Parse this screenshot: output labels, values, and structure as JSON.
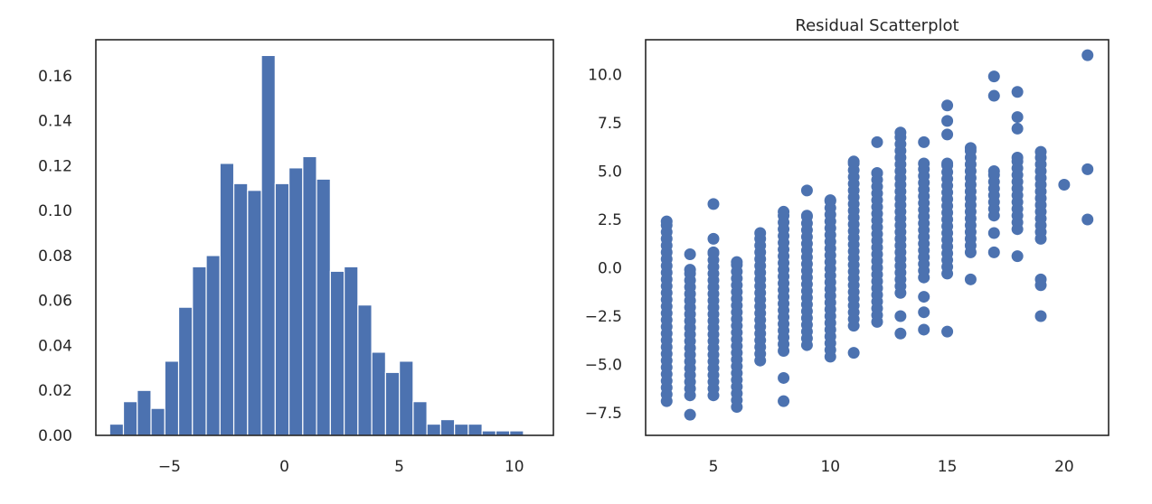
{
  "chart_data": [
    {
      "type": "bar",
      "title": "",
      "xlabel": "",
      "ylabel": "",
      "color": "#4c72b0",
      "xlim": [
        -8.2,
        11.7
      ],
      "ylim": [
        0,
        0.176
      ],
      "grid": false,
      "legend": "none",
      "bin_edges_start": -7.6,
      "bin_width": 0.6,
      "values": [
        0.005,
        0.015,
        0.02,
        0.012,
        0.033,
        0.057,
        0.075,
        0.08,
        0.121,
        0.112,
        0.109,
        0.169,
        0.112,
        0.119,
        0.124,
        0.114,
        0.073,
        0.075,
        0.058,
        0.037,
        0.028,
        0.033,
        0.015,
        0.005,
        0.007,
        0.005,
        0.005,
        0.002,
        0.002,
        0.002
      ],
      "x_ticks": [
        -5,
        0,
        5,
        10
      ],
      "x_tick_labels": [
        "−5",
        "0",
        "5",
        "10"
      ],
      "y_ticks": [
        0,
        0.02,
        0.04,
        0.06,
        0.08,
        0.1,
        0.12,
        0.14,
        0.16
      ],
      "y_tick_labels": [
        "0.00",
        "0.02",
        "0.04",
        "0.06",
        "0.08",
        "0.10",
        "0.12",
        "0.14",
        "0.16"
      ]
    },
    {
      "type": "scatter",
      "title": "Residual Scatterplot",
      "xlabel": "",
      "ylabel": "",
      "color": "#4c72b0",
      "xlim": [
        2.1,
        21.9
      ],
      "ylim": [
        -8.67,
        11.8
      ],
      "grid": false,
      "legend": "none",
      "x_ticks": [
        5,
        10,
        15,
        20
      ],
      "x_tick_labels": [
        "5",
        "10",
        "15",
        "20"
      ],
      "y_ticks": [
        -7.5,
        -5.0,
        -2.5,
        0.0,
        2.5,
        5.0,
        7.5,
        10.0
      ],
      "y_tick_labels": [
        "−7.5",
        "−5.0",
        "−2.5",
        "0.0",
        "2.5",
        "5.0",
        "7.5",
        "10.0"
      ],
      "columns": [
        {
          "x": 3,
          "y_min": -6.9,
          "y_max": 2.4,
          "extra": []
        },
        {
          "x": 4,
          "y_min": -6.6,
          "y_max": -0.1,
          "extra": [
            -7.6,
            0.7
          ]
        },
        {
          "x": 5,
          "y_min": -6.6,
          "y_max": 0.8,
          "extra": [
            1.5,
            3.3
          ]
        },
        {
          "x": 6,
          "y_min": -7.2,
          "y_max": 0.3,
          "extra": []
        },
        {
          "x": 7,
          "y_min": -4.8,
          "y_max": 1.8,
          "extra": []
        },
        {
          "x": 8,
          "y_min": -4.3,
          "y_max": 2.9,
          "extra": [
            -5.7,
            -6.9
          ]
        },
        {
          "x": 9,
          "y_min": -4.0,
          "y_max": 2.7,
          "extra": [
            4.0
          ]
        },
        {
          "x": 10,
          "y_min": -4.6,
          "y_max": 3.5,
          "extra": []
        },
        {
          "x": 11,
          "y_min": -3.0,
          "y_max": 5.5,
          "extra": [
            -4.4
          ]
        },
        {
          "x": 12,
          "y_min": -2.8,
          "y_max": 4.9,
          "extra": [
            6.5
          ]
        },
        {
          "x": 13,
          "y_min": -1.3,
          "y_max": 7.0,
          "extra": [
            -2.5,
            -3.4
          ]
        },
        {
          "x": 14,
          "y_min": -0.5,
          "y_max": 5.4,
          "extra": [
            -1.5,
            -2.3,
            -3.2,
            6.5
          ]
        },
        {
          "x": 15,
          "y_min": -0.3,
          "y_max": 5.4,
          "extra": [
            -3.3,
            6.9,
            7.6,
            8.4
          ]
        },
        {
          "x": 16,
          "y_min": 0.8,
          "y_max": 6.2,
          "extra": [
            -0.6
          ]
        },
        {
          "x": 17,
          "y_min": 2.7,
          "y_max": 5.0,
          "extra": [
            1.8,
            0.8,
            8.9,
            9.9
          ]
        },
        {
          "x": 18,
          "y_min": 2.0,
          "y_max": 5.7,
          "extra": [
            0.6,
            7.2,
            7.8,
            9.1
          ]
        },
        {
          "x": 19,
          "y_min": 1.5,
          "y_max": 6.0,
          "extra": [
            -0.9,
            -0.6,
            -2.5
          ]
        },
        {
          "x": 20,
          "y_min": 4.3,
          "y_max": 4.3,
          "extra": []
        },
        {
          "x": 21,
          "y_min": 2.5,
          "y_max": 2.5,
          "extra": [
            5.1,
            11.0
          ]
        }
      ]
    }
  ]
}
